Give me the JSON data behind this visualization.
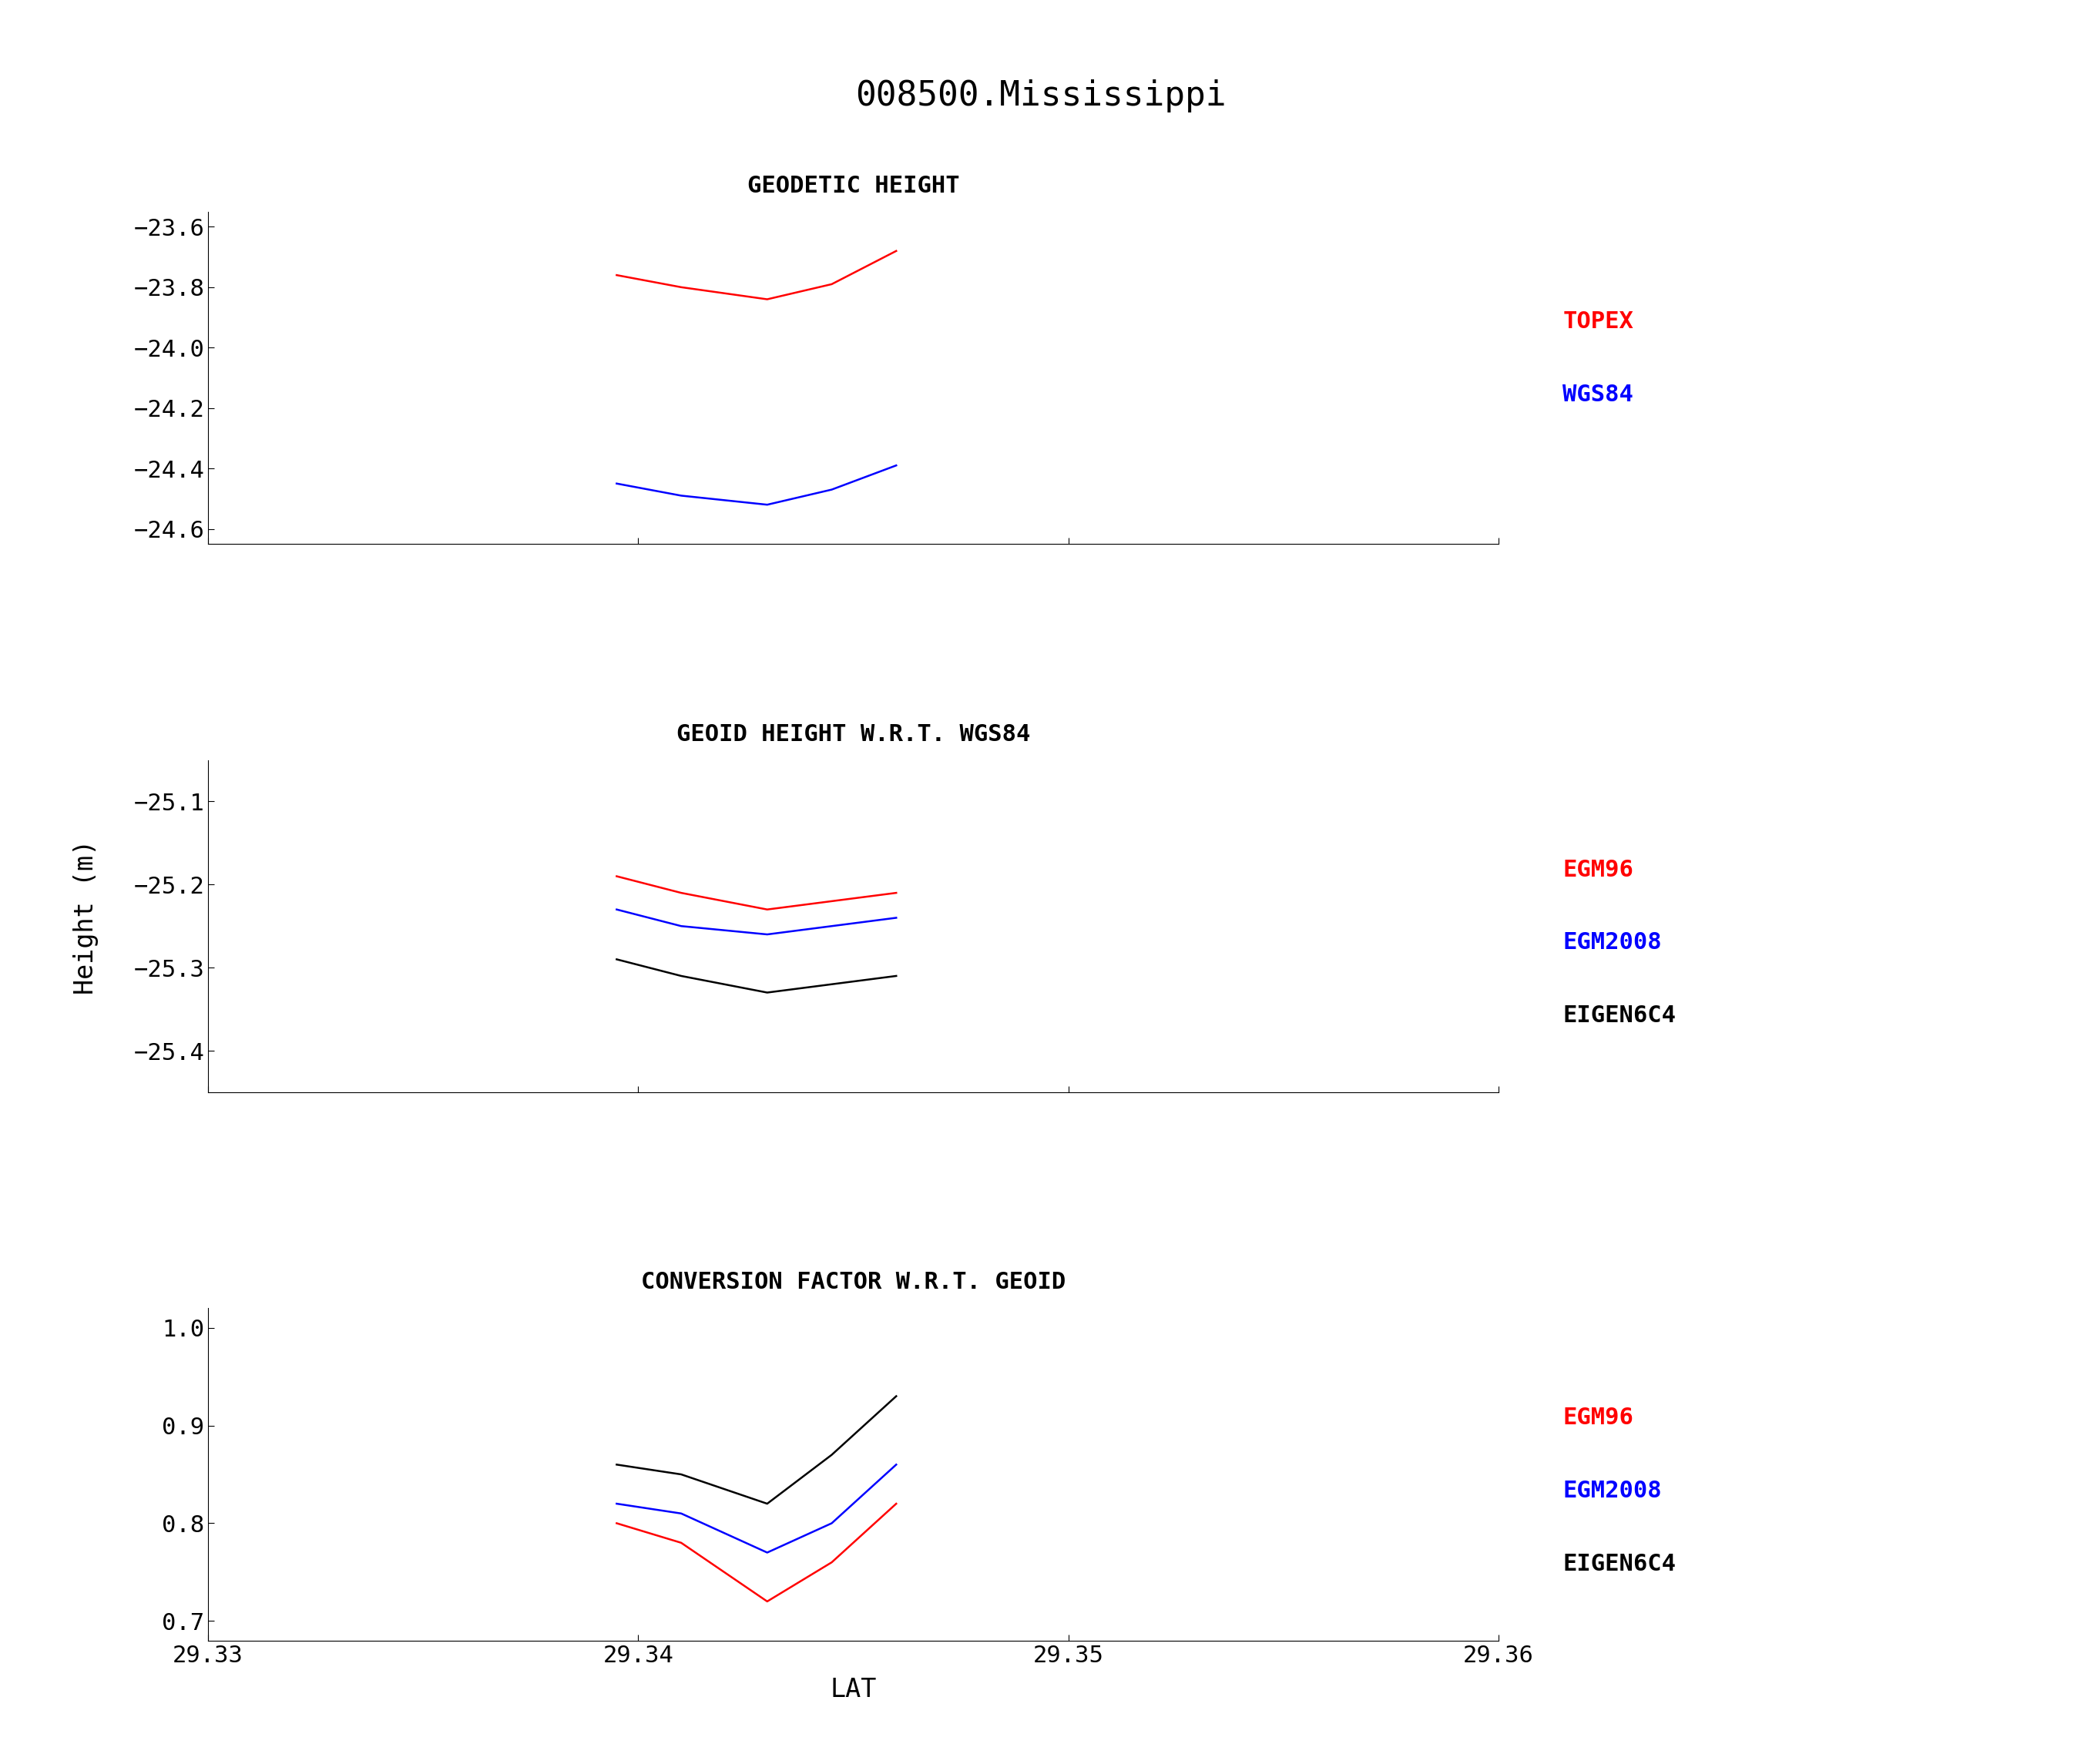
{
  "title": "008500.Mississippi",
  "xlabel": "LAT",
  "ylabel": "Height (m)",
  "xlim": [
    29.33,
    29.36
  ],
  "xticks": [
    29.33,
    29.34,
    29.35,
    29.36
  ],
  "section_labels": [
    "GEODETIC HEIGHT",
    "GEOID HEIGHT W.R.T. WGS84",
    "CONVERSION FACTOR W.R.T. GEOID"
  ],
  "lat_topex": [
    29.3395,
    29.341,
    29.343,
    29.3445,
    29.346
  ],
  "topex_geodetic": [
    -23.76,
    -23.8,
    -23.84,
    -23.79,
    -23.68
  ],
  "lat_wgs84": [
    29.3395,
    29.341,
    29.343,
    29.3445,
    29.346
  ],
  "wgs84_geodetic": [
    -24.45,
    -24.49,
    -24.52,
    -24.47,
    -24.39
  ],
  "lat_geoid": [
    29.3395,
    29.341,
    29.343,
    29.3445,
    29.346
  ],
  "egm96_geoid": [
    -25.19,
    -25.21,
    -25.23,
    -25.22,
    -25.21
  ],
  "egm2008_geoid": [
    -25.23,
    -25.25,
    -25.26,
    -25.25,
    -25.24
  ],
  "eigen6c4_geoid": [
    -25.29,
    -25.31,
    -25.33,
    -25.32,
    -25.31
  ],
  "lat_conv": [
    29.3395,
    29.341,
    29.343,
    29.3445,
    29.346
  ],
  "egm96_conv": [
    0.8,
    0.78,
    0.72,
    0.76,
    0.82
  ],
  "egm2008_conv": [
    0.82,
    0.81,
    0.77,
    0.8,
    0.86
  ],
  "eigen6c4_conv": [
    0.86,
    0.85,
    0.82,
    0.87,
    0.93
  ],
  "geodetic_ylim": [
    -24.65,
    -23.55
  ],
  "geodetic_yticks": [
    -23.6,
    -23.8,
    -24.0,
    -24.2,
    -24.4,
    -24.6
  ],
  "geoid_ylim": [
    -25.45,
    -25.05
  ],
  "geoid_yticks": [
    -25.1,
    -25.2,
    -25.3,
    -25.4
  ],
  "conv_ylim": [
    0.68,
    1.02
  ],
  "conv_yticks": [
    0.7,
    0.8,
    0.9,
    1.0
  ],
  "color_topex": "#ff0000",
  "color_wgs84": "#0000ff",
  "color_egm96": "#ff0000",
  "color_egm2008": "#0000ff",
  "color_eigen6c4": "#000000",
  "legend1_labels": [
    "TOPEX",
    "WGS84"
  ],
  "legend1_colors": [
    "#ff0000",
    "#0000ff"
  ],
  "legend2_labels": [
    "EGM96",
    "EGM2008",
    "EIGEN6C4"
  ],
  "legend2_colors": [
    "#ff0000",
    "#0000ff",
    "#000000"
  ],
  "legend3_labels": [
    "EGM96",
    "EGM2008",
    "EIGEN6C4"
  ],
  "legend3_colors": [
    "#ff0000",
    "#0000ff",
    "#000000"
  ],
  "title_fontsize": 32,
  "label_fontsize": 24,
  "section_fontsize": 22,
  "tick_fontsize": 22,
  "legend_fontsize": 22,
  "line_width": 1.8,
  "background_color": "#ffffff"
}
